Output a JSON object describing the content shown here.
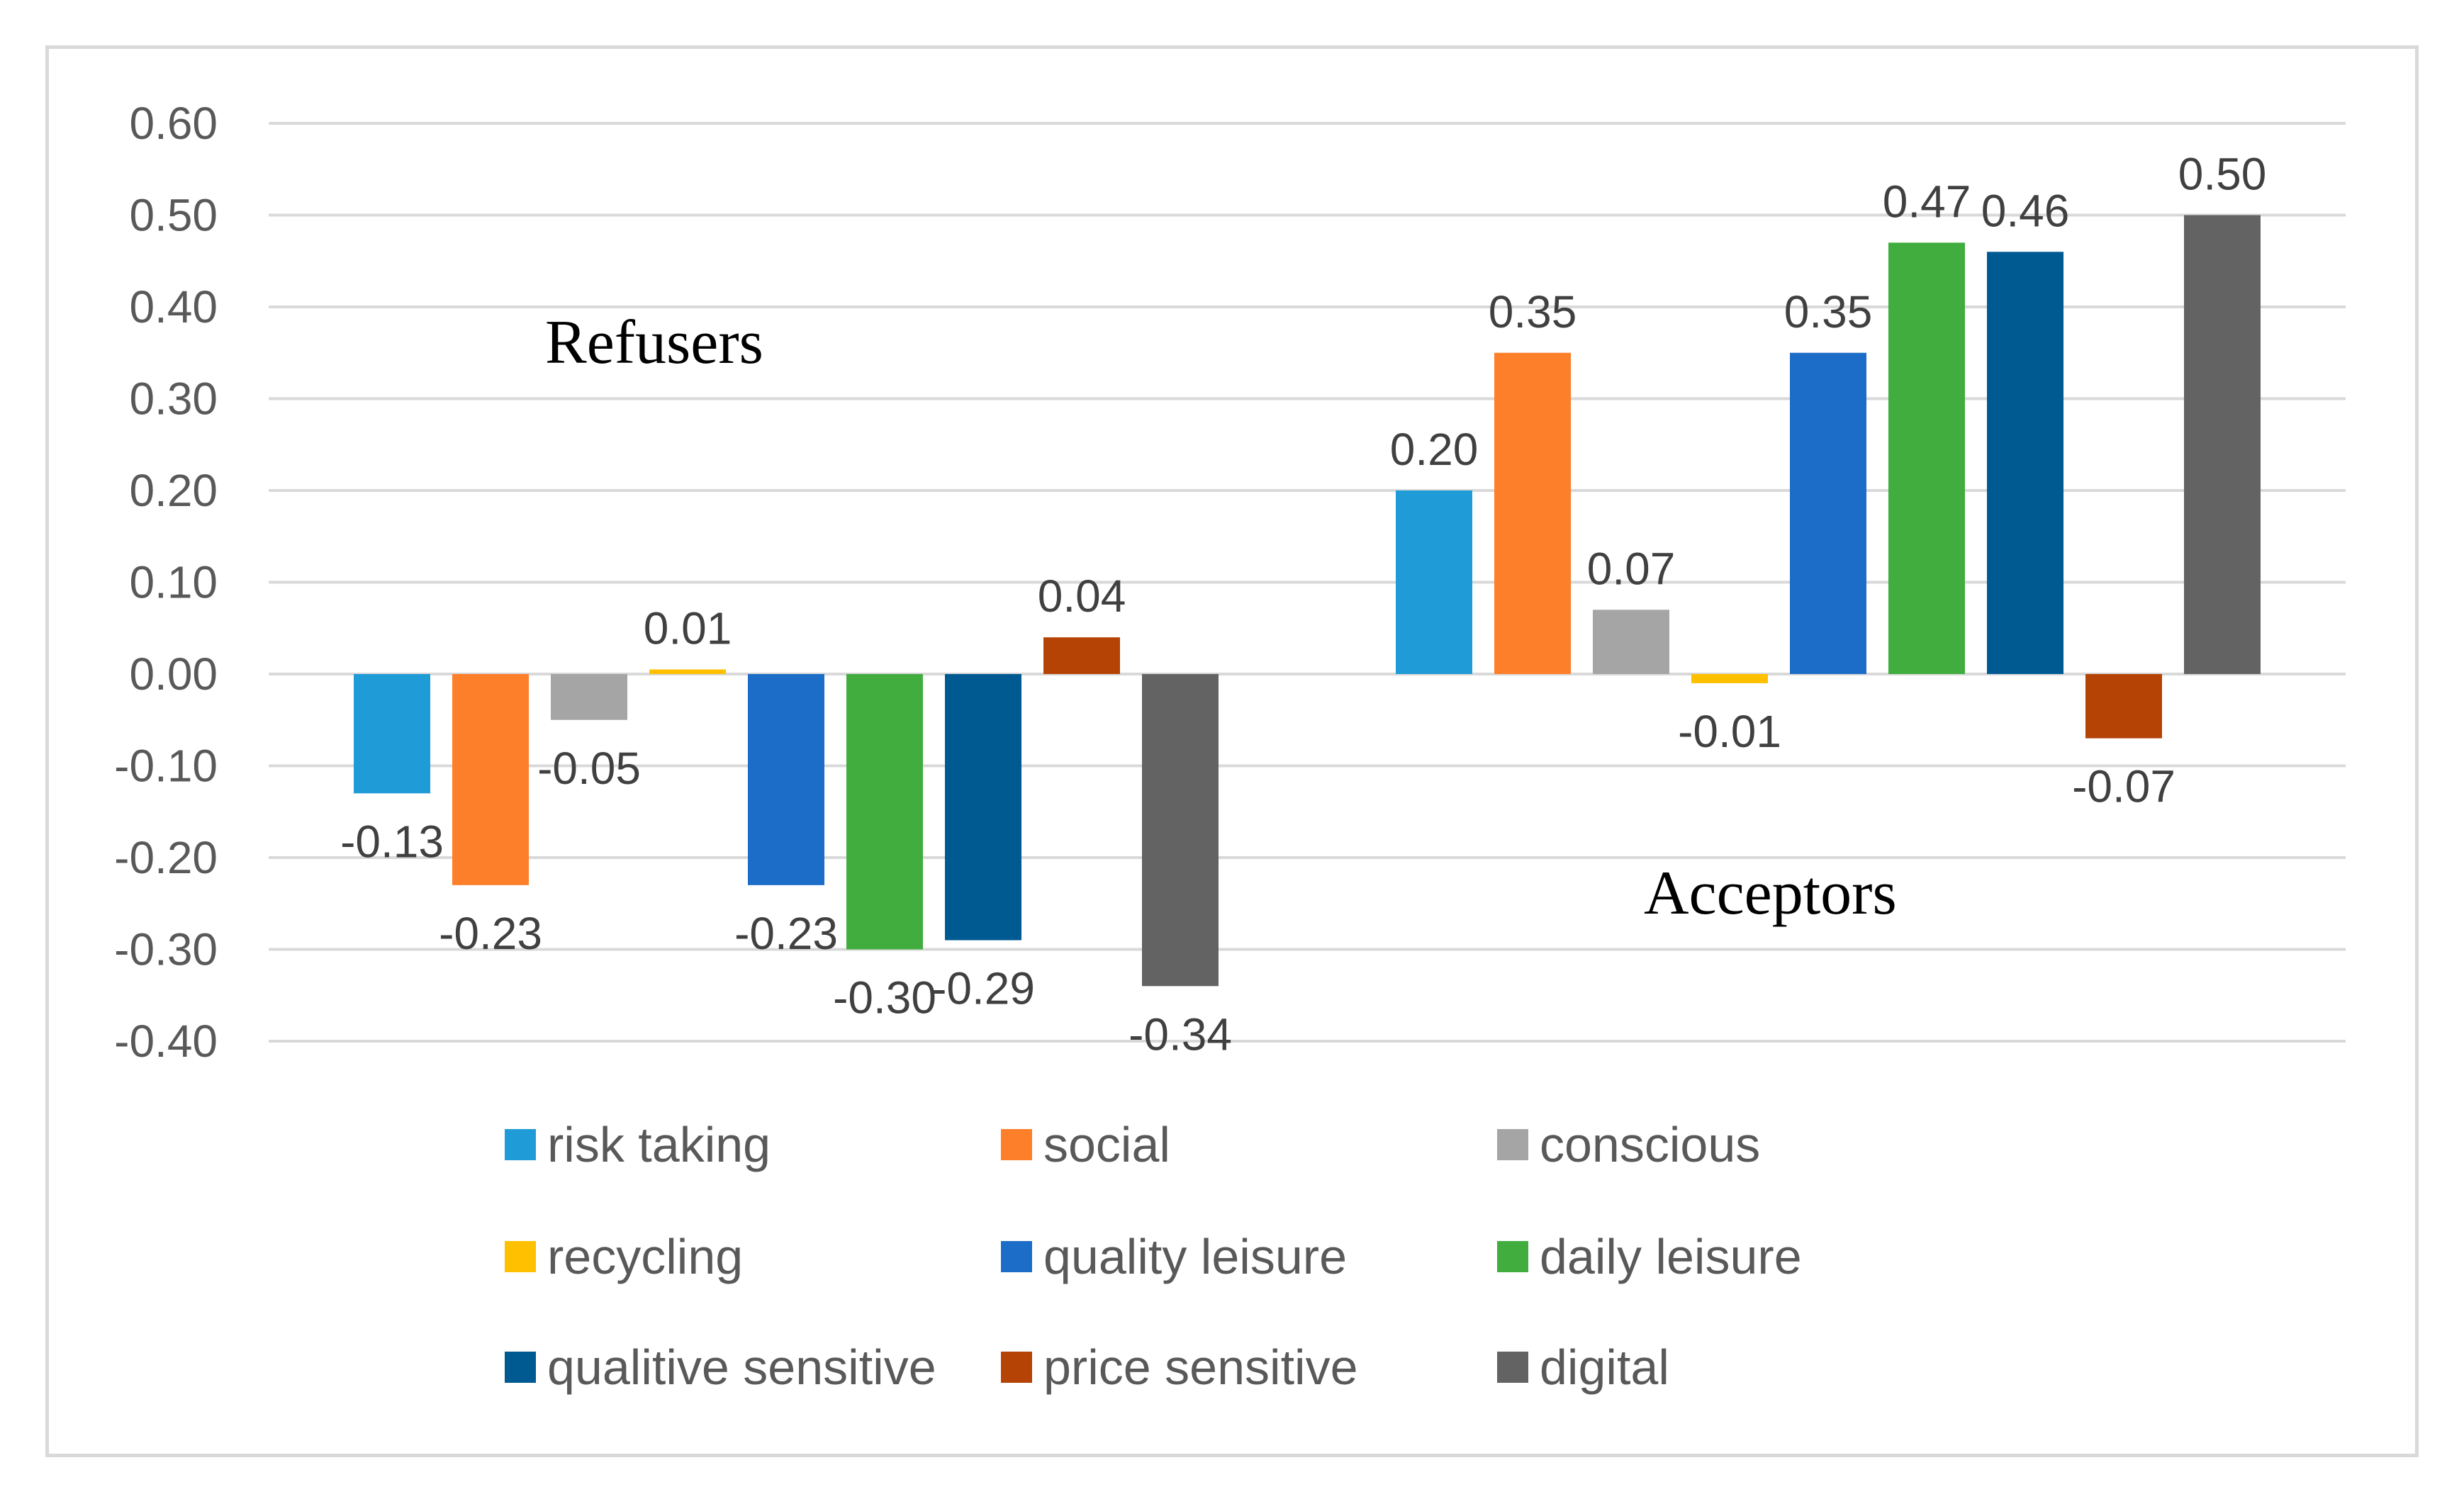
{
  "chart_data": {
    "type": "bar",
    "title": "",
    "xlabel": "",
    "ylabel": "",
    "ylim": [
      -0.4,
      0.6
    ],
    "yticks": [
      "0.60",
      "0.50",
      "0.40",
      "0.30",
      "0.20",
      "0.10",
      "0.00",
      "-0.10",
      "-0.20",
      "-0.30",
      "-0.40"
    ],
    "ytick_values": [
      0.6,
      0.5,
      0.4,
      0.3,
      0.2,
      0.1,
      0.0,
      -0.1,
      -0.2,
      -0.3,
      -0.4
    ],
    "grid": true,
    "legend_position": "bottom",
    "categories": [
      "Refusers",
      "Acceptors"
    ],
    "series": [
      {
        "name": "risk taking",
        "color": "#1f9bd7",
        "values": [
          -0.13,
          0.2
        ],
        "labels": [
          "-0.13",
          "0.20"
        ]
      },
      {
        "name": "social",
        "color": "#fe7f2a",
        "values": [
          -0.23,
          0.35
        ],
        "labels": [
          "-0.23",
          "0.35"
        ]
      },
      {
        "name": "conscious",
        "color": "#a5a5a5",
        "values": [
          -0.05,
          0.07
        ],
        "labels": [
          "-0.05",
          "0.07"
        ]
      },
      {
        "name": "recycling",
        "color": "#ffc000",
        "values": [
          0.005,
          -0.01
        ],
        "labels": [
          "0.01",
          "-0.01"
        ]
      },
      {
        "name": "quality leisure",
        "color": "#1c6dc8",
        "values": [
          -0.23,
          0.35
        ],
        "labels": [
          "-0.23",
          "0.35"
        ]
      },
      {
        "name": "daily leisure",
        "color": "#40ad3e",
        "values": [
          -0.3,
          0.47
        ],
        "labels": [
          "-0.30",
          "0.47"
        ]
      },
      {
        "name": "qualitive sensitive",
        "color": "#005a92",
        "values": [
          -0.29,
          0.46
        ],
        "labels": [
          "-0.29",
          "0.46"
        ]
      },
      {
        "name": "price sensitive",
        "color": "#b54305",
        "values": [
          0.04,
          -0.07
        ],
        "labels": [
          "0.04",
          "-0.07"
        ]
      },
      {
        "name": "digital",
        "color": "#636363",
        "values": [
          -0.34,
          0.5
        ],
        "labels": [
          "-0.34",
          "0.50"
        ]
      }
    ],
    "group_labels": [
      "Refusers",
      "Acceptors"
    ]
  }
}
